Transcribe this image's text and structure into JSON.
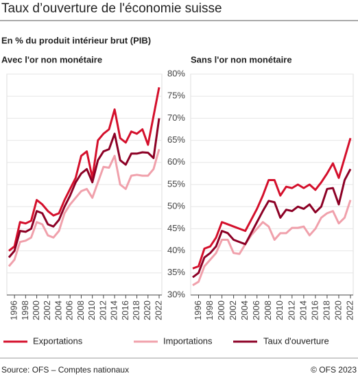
{
  "title": "Taux d’ouverture de l'économie suisse",
  "subtitle": "En % du produit intérieur brut (PIB)",
  "source": "Source: OFS – Comptes nationaux",
  "copyright": "© OFS 2023",
  "chart_data": [
    {
      "type": "line",
      "title": "Avec l'or non monétaire",
      "x": [
        1995,
        1996,
        1997,
        1998,
        1999,
        2000,
        2001,
        2002,
        2003,
        2004,
        2005,
        2006,
        2007,
        2008,
        2009,
        2010,
        2011,
        2012,
        2013,
        2014,
        2015,
        2016,
        2017,
        2018,
        2019,
        2020,
        2021,
        2022
      ],
      "xlim": [
        1995,
        2022
      ],
      "xticks": [
        1996,
        1998,
        2000,
        2002,
        2004,
        2006,
        2008,
        2010,
        2012,
        2014,
        2016,
        2018,
        2020,
        2022
      ],
      "ylim": [
        30,
        80
      ],
      "yticks": [
        {
          "value": 30,
          "label": "30%"
        },
        {
          "value": 35,
          "label": "35%"
        },
        {
          "value": 40,
          "label": "40%"
        },
        {
          "value": 45,
          "label": "45%"
        },
        {
          "value": 50,
          "label": "50%"
        },
        {
          "value": 55,
          "label": "55%"
        },
        {
          "value": 60,
          "label": "60%"
        },
        {
          "value": 65,
          "label": "65%"
        },
        {
          "value": 70,
          "label": "70%"
        },
        {
          "value": 75,
          "label": "75%"
        },
        {
          "value": 80,
          "label": "80%"
        }
      ],
      "grid": true,
      "series": [
        {
          "name": "Exportations",
          "color": "#d40f2b",
          "values": [
            40,
            41,
            46.5,
            46.2,
            46.8,
            51.5,
            50.5,
            49,
            48,
            48.5,
            51.5,
            54,
            56.5,
            61.5,
            62.5,
            56.5,
            65,
            66.5,
            67.5,
            72,
            65.5,
            64.5,
            67,
            66.5,
            67.5,
            64,
            70.5,
            77
          ]
        },
        {
          "name": "Importations",
          "color": "#f0a0ab",
          "values": [
            36.5,
            38,
            42,
            42.3,
            43,
            46.5,
            46,
            43.5,
            43,
            44.5,
            48.5,
            50.5,
            52,
            53.5,
            54,
            52,
            55.5,
            59,
            58.8,
            61.5,
            55,
            54,
            57,
            57.2,
            57,
            57,
            58.5,
            63
          ]
        },
        {
          "name": "Taux d'ouverture",
          "color": "#8c0025",
          "values": [
            38.5,
            40,
            44.5,
            44.3,
            45,
            49,
            48.5,
            46,
            45.5,
            47,
            50,
            52.5,
            55.5,
            57.5,
            58.5,
            55.5,
            60.5,
            62.5,
            63,
            66.5,
            60.5,
            59.5,
            62,
            62,
            62.3,
            62.2,
            61,
            70
          ]
        }
      ]
    },
    {
      "type": "line",
      "title": "Sans l'or non monétaire",
      "x": [
        1995,
        1996,
        1997,
        1998,
        1999,
        2000,
        2001,
        2002,
        2003,
        2004,
        2005,
        2006,
        2007,
        2008,
        2009,
        2010,
        2011,
        2012,
        2013,
        2014,
        2015,
        2016,
        2017,
        2018,
        2019,
        2020,
        2021,
        2022
      ],
      "xlim": [
        1995,
        2022
      ],
      "xticks": [
        1996,
        1998,
        2000,
        2002,
        2004,
        2006,
        2008,
        2010,
        2012,
        2014,
        2016,
        2018,
        2020,
        2022
      ],
      "ylim": [
        30,
        80
      ],
      "yticks": [
        {
          "value": 30,
          "label": "30%"
        },
        {
          "value": 35,
          "label": "35%"
        },
        {
          "value": 40,
          "label": "40%"
        },
        {
          "value": 45,
          "label": "45%"
        },
        {
          "value": 50,
          "label": "50%"
        },
        {
          "value": 55,
          "label": "55%"
        },
        {
          "value": 60,
          "label": "60%"
        },
        {
          "value": 65,
          "label": "65%"
        },
        {
          "value": 70,
          "label": "70%"
        },
        {
          "value": 75,
          "label": "75%"
        },
        {
          "value": 80,
          "label": "80%"
        }
      ],
      "grid": true,
      "series": [
        {
          "name": "Exportations",
          "color": "#d40f2b",
          "values": [
            36,
            36.5,
            40.5,
            41,
            43,
            46.5,
            46,
            45.5,
            45,
            44.5,
            47,
            49.5,
            52.5,
            56,
            56,
            52.5,
            54.5,
            54.2,
            55,
            54.2,
            55,
            53.8,
            55.5,
            57.5,
            59.8,
            56.5,
            61,
            65.5
          ]
        },
        {
          "name": "Importations",
          "color": "#f0a0ab",
          "values": [
            32.2,
            33,
            36.5,
            38,
            39.5,
            42.5,
            42.5,
            39.5,
            39.3,
            41.5,
            43.5,
            45,
            46.5,
            45.5,
            42.5,
            44,
            44,
            45.2,
            45.2,
            45.5,
            43.5,
            45,
            47.5,
            48.5,
            49,
            46.2,
            47.5,
            51.5
          ]
        },
        {
          "name": "Taux d'ouverture",
          "color": "#8c0025",
          "values": [
            34,
            35,
            38.5,
            39.5,
            41,
            44.5,
            44,
            42.5,
            42,
            41.5,
            44,
            46.5,
            49,
            51.3,
            51,
            47.5,
            49.3,
            49,
            50,
            49.5,
            50.5,
            48.7,
            50,
            54,
            54.2,
            50.5,
            56,
            58.5
          ]
        }
      ]
    }
  ]
}
